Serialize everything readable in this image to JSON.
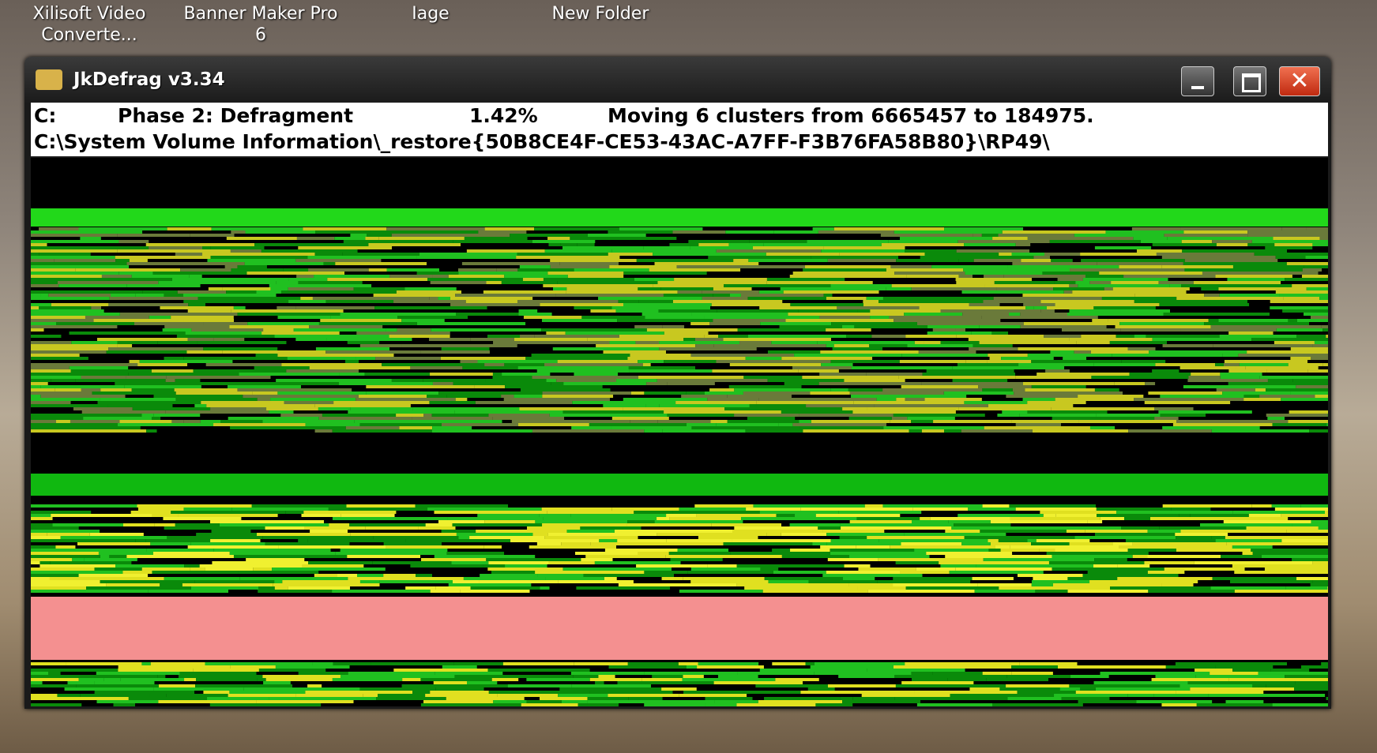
{
  "desktop_icons": [
    "Xilisoft Video Converte...",
    "Banner Maker Pro 6",
    "Iage",
    "New Folder"
  ],
  "window": {
    "title": "JkDefrag v3.34"
  },
  "status": {
    "drive": "C:",
    "phase": "Phase 2: Defragment",
    "percent": "1.42%",
    "action": "Moving 6 clusters from 6665457 to 184975.",
    "file": "C:\\System Volume Information\\_restore{50B8CE4F-CE53-43AC-A7FF-F3B76FA58B80}\\RP49\\"
  }
}
